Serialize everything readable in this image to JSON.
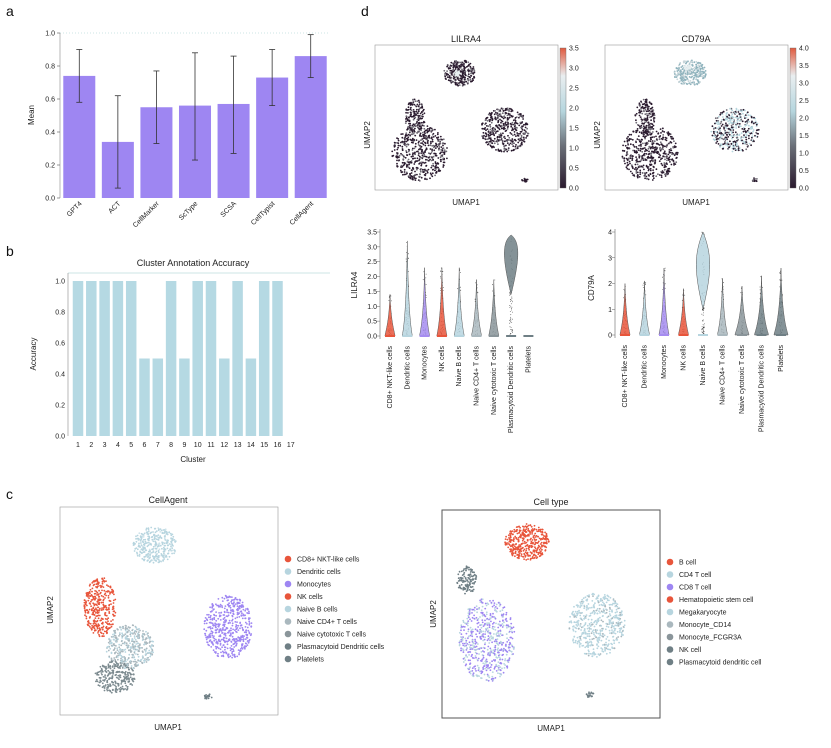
{
  "panel_letters": {
    "a": "a",
    "b": "b",
    "c": "c",
    "d": "d"
  },
  "chart_data": [
    {
      "id": "panel-a",
      "type": "bar",
      "categories": [
        "GPT4",
        "ACT",
        "CellMarker",
        "ScType",
        "SCSA",
        "CellTypist",
        "CellAgent"
      ],
      "values": [
        0.74,
        0.34,
        0.55,
        0.56,
        0.57,
        0.73,
        0.86
      ],
      "error_low": [
        0.58,
        0.06,
        0.33,
        0.23,
        0.27,
        0.56,
        0.73
      ],
      "error_high": [
        0.9,
        0.62,
        0.77,
        0.88,
        0.86,
        0.9,
        0.99
      ],
      "ylabel": "Mean",
      "ylim": [
        0,
        1.0
      ],
      "yticks": [
        "0.0",
        "0.2",
        "0.4",
        "0.6",
        "0.8",
        "1.0"
      ],
      "color": "#9e86f2"
    },
    {
      "id": "panel-b",
      "type": "bar",
      "title": "Cluster Annotation Accuracy",
      "xlabel": "Cluster",
      "ylabel": "Accuracy",
      "categories": [
        "1",
        "2",
        "3",
        "4",
        "5",
        "6",
        "7",
        "8",
        "9",
        "10",
        "11",
        "12",
        "13",
        "14",
        "15",
        "16",
        "17"
      ],
      "values": [
        1.0,
        1.0,
        1.0,
        1.0,
        1.0,
        0.5,
        0.5,
        1.0,
        0.5,
        1.0,
        1.0,
        0.5,
        1.0,
        0.5,
        1.0,
        1.0,
        0
      ],
      "ylim": [
        0,
        1.0
      ],
      "yticks": [
        "0.0",
        "0.2",
        "0.4",
        "0.6",
        "0.8",
        "1.0"
      ],
      "color": "#b5d9e3"
    },
    {
      "id": "panel-d-umap-lilra4",
      "type": "scatter",
      "title": "LILRA4",
      "xlabel": "UMAP1",
      "ylabel": "UMAP2",
      "colorbar_ticks": [
        "0.0",
        "0.5",
        "1.0",
        "1.5",
        "2.0",
        "2.5",
        "3.0",
        "3.5"
      ]
    },
    {
      "id": "panel-d-umap-cd79a",
      "type": "scatter",
      "title": "CD79A",
      "xlabel": "UMAP1",
      "ylabel": "UMAP2",
      "colorbar_ticks": [
        "0.0",
        "0.5",
        "1.0",
        "1.5",
        "2.0",
        "2.5",
        "3.0",
        "3.5",
        "4.0"
      ]
    },
    {
      "id": "panel-d-violin-lilra4",
      "type": "violin",
      "ylabel": "LILRA4",
      "ylim": [
        0,
        3.5
      ],
      "yticks": [
        "0.0",
        "0.5",
        "1.0",
        "1.5",
        "2.0",
        "2.5",
        "3.0",
        "3.5"
      ],
      "categories": [
        "CD8+ NKT-like cells",
        "Dendritic cells",
        "Monocytes",
        "NK cells",
        "Naive B cells",
        "Naive CD4+ T cells",
        "Naive cytotoxic T cells",
        "Plasmacytoid Dendritic cells",
        "Platelets"
      ],
      "max_values": [
        1.4,
        3.2,
        2.3,
        2.3,
        2.3,
        1.9,
        1.9,
        3.4,
        0
      ],
      "colors": [
        "#e8553b",
        "#b7d5df",
        "#a58cf0",
        "#e8553b",
        "#b7d5df",
        "#aab8be",
        "#8a959a",
        "#6f7f85",
        "#6f7f85"
      ]
    },
    {
      "id": "panel-d-violin-cd79a",
      "type": "violin",
      "ylabel": "CD79A",
      "ylim": [
        0,
        4
      ],
      "yticks": [
        "0",
        "1",
        "2",
        "3",
        "4"
      ],
      "categories": [
        "CD8+ NKT-like cells",
        "Dendritic cells",
        "Monocytes",
        "NK cells",
        "Naive B cells",
        "Naive CD4+ T cells",
        "Naive cytotoxic T cells",
        "Plasmacytoid Dendritic cells",
        "Platelets"
      ],
      "max_values": [
        2.0,
        2.1,
        2.6,
        1.8,
        4.0,
        2.2,
        1.9,
        2.3,
        2.6
      ],
      "colors": [
        "#e8553b",
        "#b7d5df",
        "#a58cf0",
        "#e8553b",
        "#b7d5df",
        "#aab8be",
        "#8a959a",
        "#6f7f85",
        "#6f7f85"
      ]
    },
    {
      "id": "panel-c-cellagent",
      "type": "scatter",
      "title": "CellAgent",
      "xlabel": "UMAP1",
      "ylabel": "UMAP2",
      "legend": [
        {
          "label": "CD8+ NKT-like cells",
          "color": "#e8553b"
        },
        {
          "label": "Dendritic cells",
          "color": "#b7d5df"
        },
        {
          "label": "Monocytes",
          "color": "#9e86f2"
        },
        {
          "label": "NK cells",
          "color": "#e8553b"
        },
        {
          "label": "Naive B cells",
          "color": "#b7d5df"
        },
        {
          "label": "Naive CD4+ T cells",
          "color": "#aab8be"
        },
        {
          "label": "Naive cytotoxic T cells",
          "color": "#8a959a"
        },
        {
          "label": "Plasmacytoid Dendritic cells",
          "color": "#6f7f85"
        },
        {
          "label": "Platelets",
          "color": "#6f7f85"
        }
      ]
    },
    {
      "id": "panel-c-celltype",
      "type": "scatter",
      "title": "Cell type",
      "xlabel": "UMAP1",
      "ylabel": "UMAP2",
      "legend": [
        {
          "label": "B cell",
          "color": "#e8553b"
        },
        {
          "label": "CD4 T cell",
          "color": "#b7d5df"
        },
        {
          "label": "CD8 T cell",
          "color": "#9e86f2"
        },
        {
          "label": "Hematopoietic stem cell",
          "color": "#e8553b"
        },
        {
          "label": "Megakaryocyte",
          "color": "#b7d5df"
        },
        {
          "label": "Monocyte_CD14",
          "color": "#aab8be"
        },
        {
          "label": "Monocyte_FCGR3A",
          "color": "#8a959a"
        },
        {
          "label": "NK cell",
          "color": "#6f7f85"
        },
        {
          "label": "Plasmacytoid dendritic cell",
          "color": "#6f7f85"
        }
      ]
    }
  ]
}
